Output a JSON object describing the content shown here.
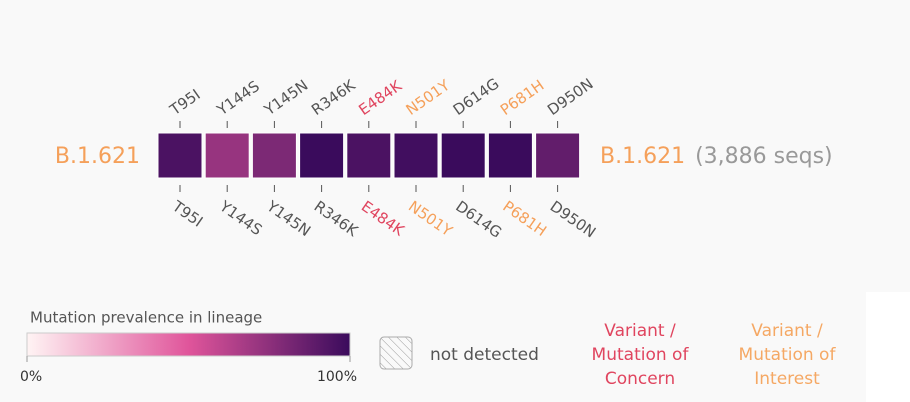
{
  "chart_data": {
    "type": "heatmap",
    "lineage": "B.1.621",
    "seq_count_label": "(3,886 seqs)",
    "lineage_color": "#f5a05a",
    "categories": [
      "T95I",
      "Y144S",
      "Y145N",
      "R346K",
      "E484K",
      "N501Y",
      "D614G",
      "P681H",
      "D950N"
    ],
    "category_colors": [
      "#555555",
      "#555555",
      "#555555",
      "#555555",
      "#e0455f",
      "#f5a05a",
      "#555555",
      "#f5a05a",
      "#555555"
    ],
    "values": [
      95,
      72,
      80,
      100,
      95,
      98,
      100,
      100,
      88
    ],
    "colorscale": [
      "#fff4f4",
      "#e0559b",
      "#3a0b5c"
    ],
    "clim": [
      0,
      100
    ],
    "cticks": [
      {
        "value": 0,
        "label": "0%"
      },
      {
        "value": 100,
        "label": "100%"
      }
    ],
    "legend_title": "Mutation prevalence in lineage",
    "not_detected_label": "not detected",
    "concern_label": [
      "Variant /",
      "Mutation of",
      "Concern"
    ],
    "concern_color": "#e0455f",
    "interest_label": [
      "Variant /",
      "Mutation of",
      "Interest"
    ],
    "interest_color": "#f5a864"
  }
}
